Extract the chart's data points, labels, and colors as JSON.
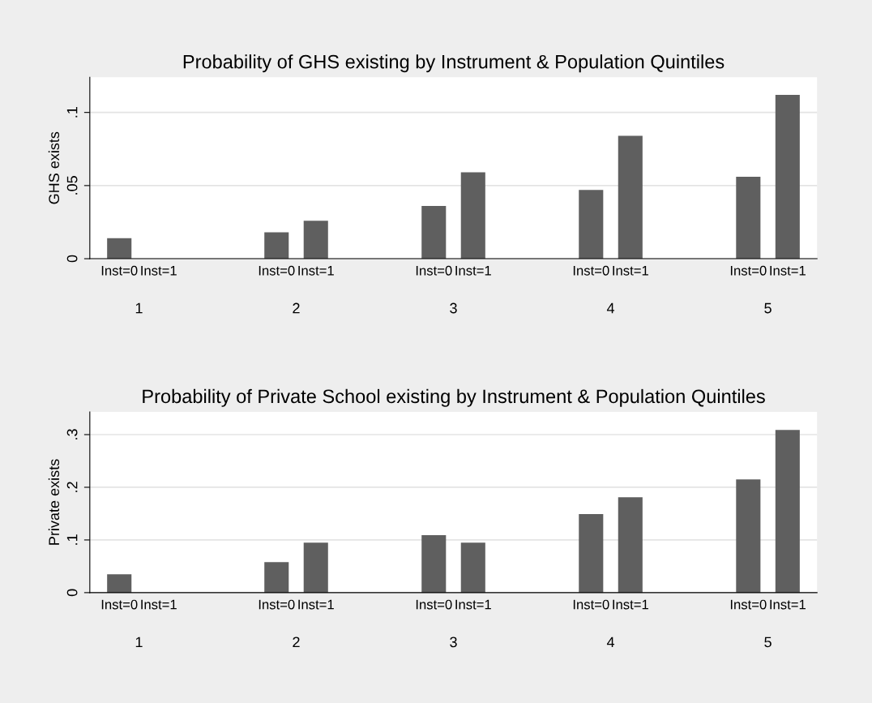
{
  "chart_data": [
    {
      "type": "bar",
      "title": "Probability of GHS existing by Instrument & Population Quintiles",
      "ylabel": "GHS exists",
      "categories": [
        "Inst=0",
        "Inst=1",
        null,
        null,
        "Inst=0",
        "Inst=1",
        null,
        null,
        "Inst=0",
        "Inst=1",
        null,
        null,
        "Inst=0",
        "Inst=1",
        null,
        null,
        "Inst=0",
        "Inst=1"
      ],
      "values": [
        0.014,
        0,
        null,
        null,
        0.018,
        0.026,
        null,
        null,
        0.036,
        0.059,
        null,
        null,
        0.047,
        0.084,
        null,
        null,
        0.056,
        0.112
      ],
      "color": "#5f5f5f",
      "ylim": [
        0,
        0.124
      ],
      "yticks": [
        {
          "value": 0,
          "label": "0"
        },
        {
          "value": 0.05,
          "label": ".05"
        },
        {
          "value": 0.1,
          "label": ".1"
        }
      ],
      "grid": "y",
      "legend": false,
      "annotations": [
        "1",
        "2",
        "3",
        "4",
        "5"
      ]
    },
    {
      "type": "bar",
      "title": "Probability of Private School existing by Instrument & Population Quintiles",
      "ylabel": "Private exists",
      "categories": [
        "Inst=0",
        "Inst=1",
        null,
        null,
        "Inst=0",
        "Inst=1",
        null,
        null,
        "Inst=0",
        "Inst=1",
        null,
        null,
        "Inst=0",
        "Inst=1",
        null,
        null,
        "Inst=0",
        "Inst=1"
      ],
      "values": [
        0.035,
        0,
        null,
        null,
        0.058,
        0.095,
        null,
        null,
        0.109,
        0.095,
        null,
        null,
        0.149,
        0.181,
        null,
        null,
        0.215,
        0.309
      ],
      "color": "#5f5f5f",
      "ylim": [
        0,
        0.343
      ],
      "yticks": [
        {
          "value": 0,
          "label": "0"
        },
        {
          "value": 0.1,
          "label": ".1"
        },
        {
          "value": 0.2,
          "label": ".2"
        },
        {
          "value": 0.3,
          "label": ".3"
        }
      ],
      "grid": "y",
      "legend": false,
      "annotations": [
        "1",
        "2",
        "3",
        "4",
        "5"
      ]
    }
  ]
}
